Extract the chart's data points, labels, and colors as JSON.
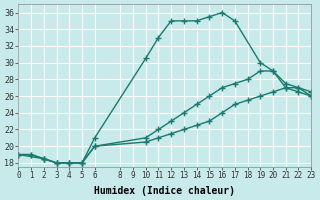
{
  "xlabel": "Humidex (Indice chaleur)",
  "ylabel": "",
  "background_color": "#c8eaea",
  "grid_color": "#ffffff",
  "line_color": "#1a7a6e",
  "xlim": [
    0,
    23
  ],
  "ylim": [
    17.5,
    37
  ],
  "xticks": [
    0,
    1,
    2,
    3,
    4,
    5,
    6,
    8,
    9,
    10,
    11,
    12,
    13,
    14,
    15,
    16,
    17,
    18,
    19,
    20,
    21,
    22,
    23
  ],
  "yticks": [
    18,
    20,
    22,
    24,
    26,
    28,
    30,
    32,
    34,
    36
  ],
  "line1_x": [
    0,
    1,
    2,
    3,
    4,
    5,
    6,
    10,
    11,
    12,
    13,
    14,
    15,
    16,
    17,
    19,
    20,
    21,
    22,
    23
  ],
  "line1_y": [
    19,
    19,
    18.5,
    18,
    18,
    18,
    21,
    30.5,
    33,
    35,
    35,
    35,
    35.5,
    36,
    35,
    30,
    29,
    27.5,
    27,
    26
  ],
  "line2_x": [
    0,
    1,
    2,
    3,
    4,
    5,
    6,
    10,
    11,
    12,
    13,
    14,
    15,
    16,
    17,
    18,
    19,
    20,
    21,
    22,
    23
  ],
  "line2_y": [
    19,
    19,
    18.5,
    18,
    18,
    18,
    20,
    21,
    22,
    23,
    24,
    25,
    26,
    27,
    27.5,
    28,
    29,
    29,
    27,
    26.5,
    26
  ],
  "line3_x": [
    0,
    2,
    3,
    4,
    5,
    6,
    10,
    11,
    12,
    13,
    14,
    15,
    16,
    17,
    18,
    19,
    20,
    21,
    22,
    23
  ],
  "line3_y": [
    19,
    18.5,
    18,
    18,
    18,
    20,
    20.5,
    21,
    21.5,
    22,
    22.5,
    23,
    24,
    25,
    25.5,
    26,
    26.5,
    27,
    27,
    26.5
  ]
}
